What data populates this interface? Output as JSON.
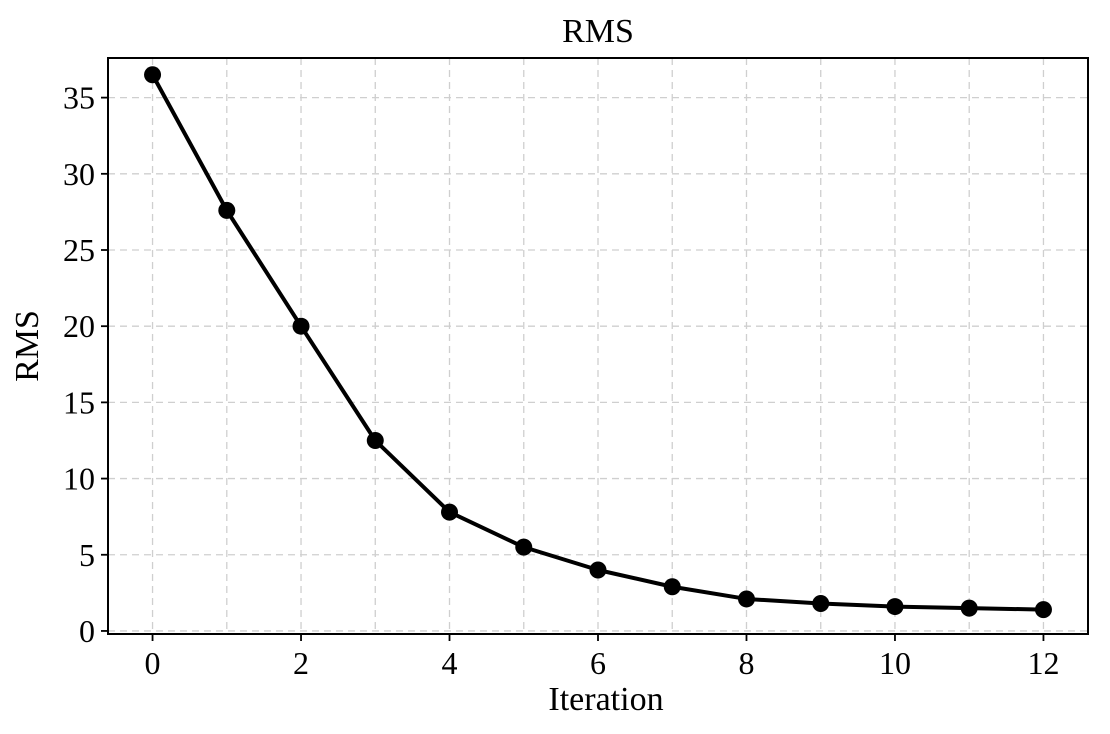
{
  "chart_data": {
    "type": "line",
    "title": "RMS",
    "xlabel": "Iteration",
    "ylabel": "RMS",
    "xlim": [
      -0.6,
      12.6
    ],
    "ylim": [
      -0.2,
      37.6
    ],
    "xticks": [
      0,
      2,
      4,
      6,
      8,
      10,
      12
    ],
    "yticks": [
      0,
      5,
      10,
      15,
      20,
      25,
      30,
      35
    ],
    "xgrid": [
      0,
      1,
      2,
      3,
      4,
      5,
      6,
      7,
      8,
      9,
      10,
      11,
      12
    ],
    "ygrid": [
      0,
      5,
      10,
      15,
      20,
      25,
      30,
      35
    ],
    "grid": true,
    "marker": "circle",
    "series": [
      {
        "color": "#000000",
        "x": [
          0,
          1,
          2,
          3,
          4,
          5,
          6,
          7,
          8,
          9,
          10,
          11,
          12
        ],
        "values": [
          36.5,
          27.6,
          20.0,
          12.5,
          7.8,
          5.5,
          4.0,
          2.9,
          2.1,
          1.8,
          1.6,
          1.5,
          1.4
        ]
      }
    ]
  }
}
